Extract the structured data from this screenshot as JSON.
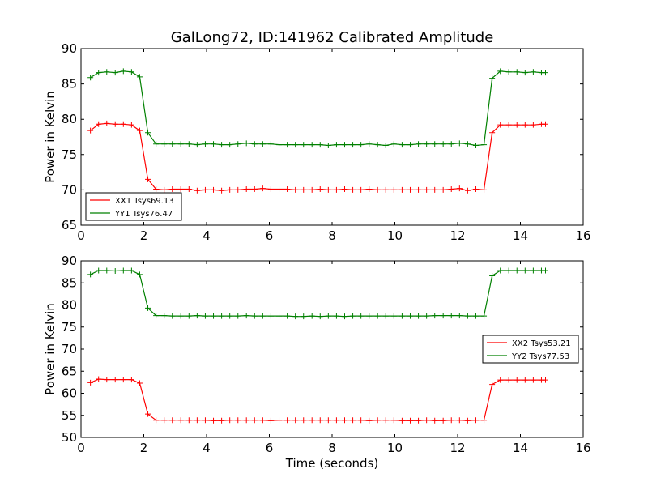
{
  "title": "GalLong72, ID:141962 Calibrated Amplitude",
  "colors": {
    "xx": "#ff0000",
    "yy": "#008000",
    "frame": "#000000",
    "background": "#ffffff"
  },
  "chart_data": [
    {
      "type": "line",
      "title": "GalLong72, ID:141962 Calibrated Amplitude",
      "xlabel": "",
      "ylabel": "Power in Kelvin",
      "xlim": [
        0,
        16
      ],
      "ylim": [
        65,
        90
      ],
      "xticks": [
        0,
        2,
        4,
        6,
        8,
        10,
        12,
        14,
        16
      ],
      "yticks": [
        65,
        70,
        75,
        80,
        85,
        90
      ],
      "legend_position": "lower-left",
      "x": [
        0.3,
        0.56,
        0.82,
        1.09,
        1.35,
        1.61,
        1.87,
        2.13,
        2.39,
        2.65,
        2.91,
        3.18,
        3.44,
        3.7,
        3.96,
        4.22,
        4.48,
        4.74,
        5.0,
        5.27,
        5.53,
        5.79,
        6.05,
        6.31,
        6.57,
        6.83,
        7.09,
        7.36,
        7.62,
        7.88,
        8.14,
        8.4,
        8.66,
        8.92,
        9.18,
        9.45,
        9.71,
        9.97,
        10.23,
        10.49,
        10.75,
        11.01,
        11.27,
        11.54,
        11.8,
        12.06,
        12.32,
        12.58,
        12.84,
        13.1,
        13.36,
        13.63,
        13.89,
        14.15,
        14.41,
        14.67,
        14.8
      ],
      "series": [
        {
          "name": "XX1 Tsys69.13",
          "color": "#ff0000",
          "values": [
            78.4,
            79.3,
            79.4,
            79.3,
            79.3,
            79.2,
            78.4,
            71.5,
            70.1,
            70.0,
            70.1,
            70.1,
            70.1,
            69.9,
            70.0,
            70.0,
            69.9,
            70.0,
            70.0,
            70.1,
            70.1,
            70.2,
            70.1,
            70.1,
            70.1,
            70.0,
            70.0,
            70.0,
            70.1,
            70.0,
            70.0,
            70.1,
            70.0,
            70.0,
            70.1,
            70.0,
            70.0,
            70.0,
            70.0,
            70.0,
            70.0,
            70.0,
            70.0,
            70.0,
            70.1,
            70.2,
            69.9,
            70.1,
            70.0,
            78.1,
            79.2,
            79.2,
            79.2,
            79.2,
            79.2,
            79.3,
            79.3
          ]
        },
        {
          "name": "YY1 Tsys76.47",
          "color": "#008000",
          "values": [
            85.9,
            86.6,
            86.7,
            86.6,
            86.8,
            86.7,
            86.0,
            78.1,
            76.5,
            76.5,
            76.5,
            76.5,
            76.5,
            76.4,
            76.5,
            76.5,
            76.4,
            76.4,
            76.5,
            76.6,
            76.5,
            76.5,
            76.5,
            76.4,
            76.4,
            76.4,
            76.4,
            76.4,
            76.4,
            76.3,
            76.4,
            76.4,
            76.4,
            76.4,
            76.5,
            76.4,
            76.3,
            76.5,
            76.4,
            76.4,
            76.5,
            76.5,
            76.5,
            76.5,
            76.5,
            76.6,
            76.5,
            76.3,
            76.4,
            85.8,
            86.8,
            86.7,
            86.7,
            86.6,
            86.7,
            86.6,
            86.6
          ]
        }
      ]
    },
    {
      "type": "line",
      "title": "",
      "xlabel": "Time (seconds)",
      "ylabel": "Power in Kelvin",
      "xlim": [
        0,
        16
      ],
      "ylim": [
        50,
        90
      ],
      "xticks": [
        0,
        2,
        4,
        6,
        8,
        10,
        12,
        14,
        16
      ],
      "yticks": [
        50,
        55,
        60,
        65,
        70,
        75,
        80,
        85,
        90
      ],
      "legend_position": "center-right",
      "x": [
        0.3,
        0.56,
        0.82,
        1.09,
        1.35,
        1.61,
        1.87,
        2.13,
        2.39,
        2.65,
        2.91,
        3.18,
        3.44,
        3.7,
        3.96,
        4.22,
        4.48,
        4.74,
        5.0,
        5.27,
        5.53,
        5.79,
        6.05,
        6.31,
        6.57,
        6.83,
        7.09,
        7.36,
        7.62,
        7.88,
        8.14,
        8.4,
        8.66,
        8.92,
        9.18,
        9.45,
        9.71,
        9.97,
        10.23,
        10.49,
        10.75,
        11.01,
        11.27,
        11.54,
        11.8,
        12.06,
        12.32,
        12.58,
        12.84,
        13.1,
        13.36,
        13.63,
        13.89,
        14.15,
        14.41,
        14.67,
        14.8
      ],
      "series": [
        {
          "name": "XX2 Tsys53.21",
          "color": "#ff0000",
          "values": [
            62.4,
            63.2,
            63.1,
            63.1,
            63.1,
            63.1,
            62.3,
            55.3,
            53.9,
            53.9,
            53.9,
            53.9,
            53.9,
            53.9,
            53.9,
            53.8,
            53.8,
            53.9,
            53.9,
            53.9,
            53.9,
            53.9,
            53.8,
            53.9,
            53.9,
            53.9,
            53.9,
            53.9,
            53.9,
            53.9,
            53.9,
            53.9,
            53.9,
            53.9,
            53.8,
            53.9,
            53.9,
            53.9,
            53.8,
            53.8,
            53.8,
            53.9,
            53.8,
            53.8,
            53.9,
            53.9,
            53.8,
            53.9,
            53.9,
            62.0,
            63.0,
            63.0,
            63.0,
            63.0,
            63.0,
            63.0,
            63.0
          ]
        },
        {
          "name": "YY2 Tsys77.53",
          "color": "#008000",
          "values": [
            86.9,
            87.8,
            87.8,
            87.7,
            87.8,
            87.8,
            86.9,
            79.3,
            77.6,
            77.6,
            77.5,
            77.5,
            77.5,
            77.6,
            77.5,
            77.5,
            77.5,
            77.5,
            77.5,
            77.6,
            77.5,
            77.5,
            77.5,
            77.5,
            77.5,
            77.4,
            77.4,
            77.5,
            77.4,
            77.5,
            77.5,
            77.4,
            77.5,
            77.5,
            77.5,
            77.5,
            77.5,
            77.5,
            77.5,
            77.5,
            77.5,
            77.5,
            77.6,
            77.6,
            77.6,
            77.6,
            77.5,
            77.5,
            77.5,
            86.6,
            87.8,
            87.8,
            87.8,
            87.8,
            87.8,
            87.8,
            87.8
          ]
        }
      ]
    }
  ]
}
